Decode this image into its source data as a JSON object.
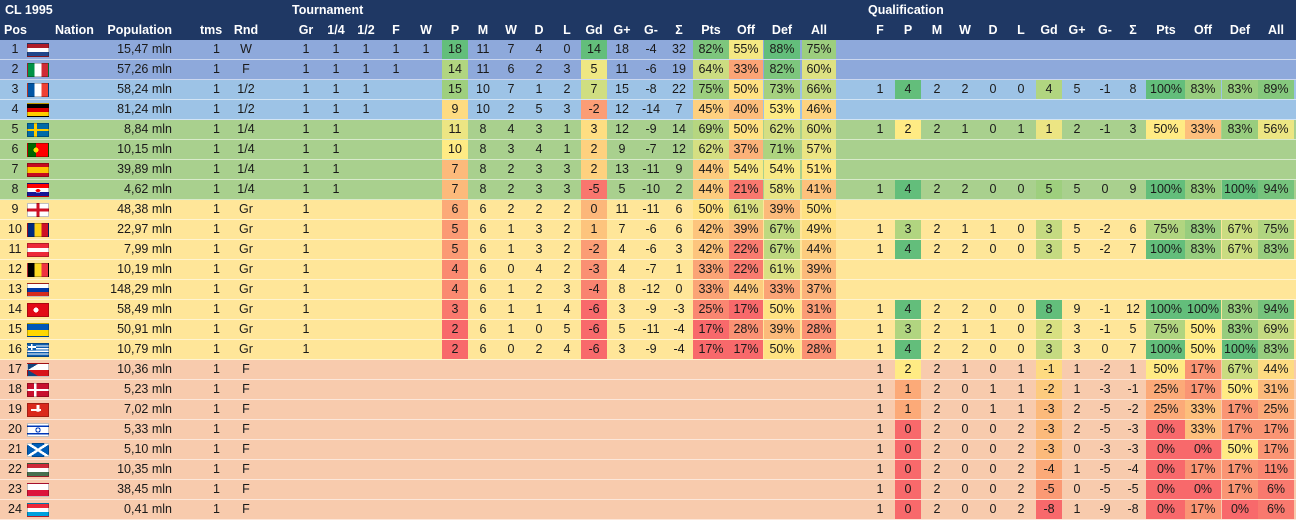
{
  "header": {
    "title": "CL 1995",
    "tournament_label": "Tournament",
    "qualification_label": "Qualification",
    "cols": {
      "pos": "Pos",
      "nation": "Nation",
      "population": "Population",
      "tms": "tms",
      "rnd": "Rnd",
      "gr": "Gr",
      "q": "1/4",
      "s": "1/2",
      "f": "F",
      "w": "W",
      "p": "P",
      "m": "M",
      "wins": "W",
      "d": "D",
      "l": "L",
      "gd": "Gd",
      "gplus": "G+",
      "gminus": "G-",
      "sum": "Σ",
      "pts": "Pts",
      "off": "Off",
      "def": "Def",
      "all": "All",
      "qf": "F",
      "qp": "P",
      "qm": "M",
      "qw": "W",
      "qd": "D",
      "ql": "L",
      "qgd": "Gd",
      "qgplus": "G+",
      "qgminus": "G-",
      "qsum": "Σ",
      "qpts": "Pts",
      "qoff": "Off",
      "qdef": "Def",
      "qall": "All"
    }
  },
  "colors": {
    "header": "#1f3864",
    "row_winner": "#8ea9db",
    "row_semi": "#9dc3e6",
    "row_quarter": "#a9d08e",
    "row_group": "#ffe699",
    "row_qual_out": "#f8cbad"
  },
  "rows": [
    {
      "pos": "1",
      "code": "NLD",
      "flag": "nld",
      "pop": "15,47 mln",
      "tms": "1",
      "rnd": "W",
      "gr": "1",
      "q": "1",
      "s": "1",
      "f": "1",
      "w": "1",
      "p": "18",
      "m": "11",
      "win": "7",
      "d": "4",
      "l": "0",
      "gd": "14",
      "gp": "18",
      "gm": "-4",
      "sum": "32",
      "pts": "82%",
      "off": "55%",
      "def": "88%",
      "all": "75%",
      "band": "winner",
      "qual": null
    },
    {
      "pos": "2",
      "code": "ITA",
      "flag": "ita",
      "pop": "57,26 mln",
      "tms": "1",
      "rnd": "F",
      "gr": "1",
      "q": "1",
      "s": "1",
      "f": "1",
      "w": "",
      "p": "14",
      "m": "11",
      "win": "6",
      "d": "2",
      "l": "3",
      "gd": "5",
      "gp": "11",
      "gm": "-6",
      "sum": "19",
      "pts": "64%",
      "off": "33%",
      "def": "82%",
      "all": "60%",
      "band": "winner",
      "qual": null
    },
    {
      "pos": "3",
      "code": "FRA",
      "flag": "fra",
      "pop": "58,24 mln",
      "tms": "1",
      "rnd": "1/2",
      "gr": "1",
      "q": "1",
      "s": "1",
      "f": "",
      "w": "",
      "p": "15",
      "m": "10",
      "win": "7",
      "d": "1",
      "l": "2",
      "gd": "7",
      "gp": "15",
      "gm": "-8",
      "sum": "22",
      "pts": "75%",
      "off": "50%",
      "def": "73%",
      "all": "66%",
      "band": "semi",
      "qual": {
        "f": "1",
        "p": "4",
        "m": "2",
        "w": "2",
        "d": "0",
        "l": "0",
        "gd": "4",
        "gp": "5",
        "gm": "-1",
        "sum": "8",
        "pts": "100%",
        "off": "83%",
        "def": "83%",
        "all": "89%"
      }
    },
    {
      "pos": "4",
      "code": "DEU",
      "flag": "deu",
      "pop": "81,24 mln",
      "tms": "1",
      "rnd": "1/2",
      "gr": "1",
      "q": "1",
      "s": "1",
      "f": "",
      "w": "",
      "p": "9",
      "m": "10",
      "win": "2",
      "d": "5",
      "l": "3",
      "gd": "-2",
      "gp": "12",
      "gm": "-14",
      "sum": "7",
      "pts": "45%",
      "off": "40%",
      "def": "53%",
      "all": "46%",
      "band": "semi",
      "qual": null
    },
    {
      "pos": "5",
      "code": "SWE",
      "flag": "swe",
      "pop": "8,84 mln",
      "tms": "1",
      "rnd": "1/4",
      "gr": "1",
      "q": "1",
      "s": "",
      "f": "",
      "w": "",
      "p": "11",
      "m": "8",
      "win": "4",
      "d": "3",
      "l": "1",
      "gd": "3",
      "gp": "12",
      "gm": "-9",
      "sum": "14",
      "pts": "69%",
      "off": "50%",
      "def": "62%",
      "all": "60%",
      "band": "quarter",
      "qual": {
        "f": "1",
        "p": "2",
        "m": "2",
        "w": "1",
        "d": "0",
        "l": "1",
        "gd": "1",
        "gp": "2",
        "gm": "-1",
        "sum": "3",
        "pts": "50%",
        "off": "33%",
        "def": "83%",
        "all": "56%"
      }
    },
    {
      "pos": "6",
      "code": "PRT",
      "flag": "prt",
      "pop": "10,15 mln",
      "tms": "1",
      "rnd": "1/4",
      "gr": "1",
      "q": "1",
      "s": "",
      "f": "",
      "w": "",
      "p": "10",
      "m": "8",
      "win": "3",
      "d": "4",
      "l": "1",
      "gd": "2",
      "gp": "9",
      "gm": "-7",
      "sum": "12",
      "pts": "62%",
      "off": "37%",
      "def": "71%",
      "all": "57%",
      "band": "quarter",
      "qual": null
    },
    {
      "pos": "7",
      "code": "ESP",
      "flag": "esp",
      "pop": "39,89 mln",
      "tms": "1",
      "rnd": "1/4",
      "gr": "1",
      "q": "1",
      "s": "",
      "f": "",
      "w": "",
      "p": "7",
      "m": "8",
      "win": "2",
      "d": "3",
      "l": "3",
      "gd": "2",
      "gp": "13",
      "gm": "-11",
      "sum": "9",
      "pts": "44%",
      "off": "54%",
      "def": "54%",
      "all": "51%",
      "band": "quarter",
      "qual": null
    },
    {
      "pos": "8",
      "code": "HRV",
      "flag": "hrv",
      "pop": "4,62 mln",
      "tms": "1",
      "rnd": "1/4",
      "gr": "1",
      "q": "1",
      "s": "",
      "f": "",
      "w": "",
      "p": "7",
      "m": "8",
      "win": "2",
      "d": "3",
      "l": "3",
      "gd": "-5",
      "gp": "5",
      "gm": "-10",
      "sum": "2",
      "pts": "44%",
      "off": "21%",
      "def": "58%",
      "all": "41%",
      "band": "quarter",
      "qual": {
        "f": "1",
        "p": "4",
        "m": "2",
        "w": "2",
        "d": "0",
        "l": "0",
        "gd": "5",
        "gp": "5",
        "gm": "0",
        "sum": "9",
        "pts": "100%",
        "off": "83%",
        "def": "100%",
        "all": "94%"
      }
    },
    {
      "pos": "9",
      "code": "ENG",
      "flag": "eng",
      "pop": "48,38 mln",
      "tms": "1",
      "rnd": "Gr",
      "gr": "1",
      "q": "",
      "s": "",
      "f": "",
      "w": "",
      "p": "6",
      "m": "6",
      "win": "2",
      "d": "2",
      "l": "2",
      "gd": "0",
      "gp": "11",
      "gm": "-11",
      "sum": "6",
      "pts": "50%",
      "off": "61%",
      "def": "39%",
      "all": "50%",
      "band": "group",
      "qual": null
    },
    {
      "pos": "10",
      "code": "ROU",
      "flag": "rou",
      "pop": "22,97 mln",
      "tms": "1",
      "rnd": "Gr",
      "gr": "1",
      "q": "",
      "s": "",
      "f": "",
      "w": "",
      "p": "5",
      "m": "6",
      "win": "1",
      "d": "3",
      "l": "2",
      "gd": "1",
      "gp": "7",
      "gm": "-6",
      "sum": "6",
      "pts": "42%",
      "off": "39%",
      "def": "67%",
      "all": "49%",
      "band": "group",
      "qual": {
        "f": "1",
        "p": "3",
        "m": "2",
        "w": "1",
        "d": "1",
        "l": "0",
        "gd": "3",
        "gp": "5",
        "gm": "-2",
        "sum": "6",
        "pts": "75%",
        "off": "83%",
        "def": "67%",
        "all": "75%"
      }
    },
    {
      "pos": "11",
      "code": "AUT",
      "flag": "aut",
      "pop": "7,99 mln",
      "tms": "1",
      "rnd": "Gr",
      "gr": "1",
      "q": "",
      "s": "",
      "f": "",
      "w": "",
      "p": "5",
      "m": "6",
      "win": "1",
      "d": "3",
      "l": "2",
      "gd": "-2",
      "gp": "4",
      "gm": "-6",
      "sum": "3",
      "pts": "42%",
      "off": "22%",
      "def": "67%",
      "all": "44%",
      "band": "group",
      "qual": {
        "f": "1",
        "p": "4",
        "m": "2",
        "w": "2",
        "d": "0",
        "l": "0",
        "gd": "3",
        "gp": "5",
        "gm": "-2",
        "sum": "7",
        "pts": "100%",
        "off": "83%",
        "def": "67%",
        "all": "83%"
      }
    },
    {
      "pos": "12",
      "code": "BEL",
      "flag": "bel",
      "pop": "10,19 mln",
      "tms": "1",
      "rnd": "Gr",
      "gr": "1",
      "q": "",
      "s": "",
      "f": "",
      "w": "",
      "p": "4",
      "m": "6",
      "win": "0",
      "d": "4",
      "l": "2",
      "gd": "-3",
      "gp": "4",
      "gm": "-7",
      "sum": "1",
      "pts": "33%",
      "off": "22%",
      "def": "61%",
      "all": "39%",
      "band": "group",
      "qual": null
    },
    {
      "pos": "13",
      "code": "RUS",
      "flag": "rus",
      "pop": "148,29 mln",
      "tms": "1",
      "rnd": "Gr",
      "gr": "1",
      "q": "",
      "s": "",
      "f": "",
      "w": "",
      "p": "4",
      "m": "6",
      "win": "1",
      "d": "2",
      "l": "3",
      "gd": "-4",
      "gp": "8",
      "gm": "-12",
      "sum": "0",
      "pts": "33%",
      "off": "44%",
      "def": "33%",
      "all": "37%",
      "band": "group",
      "qual": null
    },
    {
      "pos": "14",
      "code": "TUR",
      "flag": "tur",
      "pop": "58,49 mln",
      "tms": "1",
      "rnd": "Gr",
      "gr": "1",
      "q": "",
      "s": "",
      "f": "",
      "w": "",
      "p": "3",
      "m": "6",
      "win": "1",
      "d": "1",
      "l": "4",
      "gd": "-6",
      "gp": "3",
      "gm": "-9",
      "sum": "-3",
      "pts": "25%",
      "off": "17%",
      "def": "50%",
      "all": "31%",
      "band": "group",
      "qual": {
        "f": "1",
        "p": "4",
        "m": "2",
        "w": "2",
        "d": "0",
        "l": "0",
        "gd": "8",
        "gp": "9",
        "gm": "-1",
        "sum": "12",
        "pts": "100%",
        "off": "100%",
        "def": "83%",
        "all": "94%"
      }
    },
    {
      "pos": "15",
      "code": "UKR",
      "flag": "ukr",
      "pop": "50,91 mln",
      "tms": "1",
      "rnd": "Gr",
      "gr": "1",
      "q": "",
      "s": "",
      "f": "",
      "w": "",
      "p": "2",
      "m": "6",
      "win": "1",
      "d": "0",
      "l": "5",
      "gd": "-6",
      "gp": "5",
      "gm": "-11",
      "sum": "-4",
      "pts": "17%",
      "off": "28%",
      "def": "39%",
      "all": "28%",
      "band": "group",
      "qual": {
        "f": "1",
        "p": "3",
        "m": "2",
        "w": "1",
        "d": "1",
        "l": "0",
        "gd": "2",
        "gp": "3",
        "gm": "-1",
        "sum": "5",
        "pts": "75%",
        "off": "50%",
        "def": "83%",
        "all": "69%"
      }
    },
    {
      "pos": "16",
      "code": "GRC",
      "flag": "grc",
      "pop": "10,79 mln",
      "tms": "1",
      "rnd": "Gr",
      "gr": "1",
      "q": "",
      "s": "",
      "f": "",
      "w": "",
      "p": "2",
      "m": "6",
      "win": "0",
      "d": "2",
      "l": "4",
      "gd": "-6",
      "gp": "3",
      "gm": "-9",
      "sum": "-4",
      "pts": "17%",
      "off": "17%",
      "def": "50%",
      "all": "28%",
      "band": "group",
      "qual": {
        "f": "1",
        "p": "4",
        "m": "2",
        "w": "2",
        "d": "0",
        "l": "0",
        "gd": "3",
        "gp": "3",
        "gm": "0",
        "sum": "7",
        "pts": "100%",
        "off": "50%",
        "def": "100%",
        "all": "83%"
      }
    },
    {
      "pos": "17",
      "code": "CZE",
      "flag": "cze",
      "pop": "10,36 mln",
      "tms": "1",
      "rnd": "F",
      "band": "qual",
      "qual": {
        "f": "1",
        "p": "2",
        "m": "2",
        "w": "1",
        "d": "0",
        "l": "1",
        "gd": "-1",
        "gp": "1",
        "gm": "-2",
        "sum": "1",
        "pts": "50%",
        "off": "17%",
        "def": "67%",
        "all": "44%"
      }
    },
    {
      "pos": "18",
      "code": "DNK",
      "flag": "dnk",
      "pop": "5,23 mln",
      "tms": "1",
      "rnd": "F",
      "band": "qual",
      "qual": {
        "f": "1",
        "p": "1",
        "m": "2",
        "w": "0",
        "d": "1",
        "l": "1",
        "gd": "-2",
        "gp": "1",
        "gm": "-3",
        "sum": "-1",
        "pts": "25%",
        "off": "17%",
        "def": "50%",
        "all": "31%"
      }
    },
    {
      "pos": "19",
      "code": "CHE",
      "flag": "che",
      "pop": "7,02 mln",
      "tms": "1",
      "rnd": "F",
      "band": "qual",
      "qual": {
        "f": "1",
        "p": "1",
        "m": "2",
        "w": "0",
        "d": "1",
        "l": "1",
        "gd": "-3",
        "gp": "2",
        "gm": "-5",
        "sum": "-2",
        "pts": "25%",
        "off": "33%",
        "def": "17%",
        "all": "25%"
      }
    },
    {
      "pos": "20",
      "code": "ISR",
      "flag": "isr",
      "pop": "5,33 mln",
      "tms": "1",
      "rnd": "F",
      "band": "qual",
      "qual": {
        "f": "1",
        "p": "0",
        "m": "2",
        "w": "0",
        "d": "0",
        "l": "2",
        "gd": "-3",
        "gp": "2",
        "gm": "-5",
        "sum": "-3",
        "pts": "0%",
        "off": "33%",
        "def": "17%",
        "all": "17%"
      }
    },
    {
      "pos": "21",
      "code": "SCO",
      "flag": "sco",
      "pop": "5,10 mln",
      "tms": "1",
      "rnd": "F",
      "band": "qual",
      "qual": {
        "f": "1",
        "p": "0",
        "m": "2",
        "w": "0",
        "d": "0",
        "l": "2",
        "gd": "-3",
        "gp": "0",
        "gm": "-3",
        "sum": "-3",
        "pts": "0%",
        "off": "0%",
        "def": "50%",
        "all": "17%"
      }
    },
    {
      "pos": "22",
      "code": "HUN",
      "flag": "hun",
      "pop": "10,35 mln",
      "tms": "1",
      "rnd": "F",
      "band": "qual",
      "qual": {
        "f": "1",
        "p": "0",
        "m": "2",
        "w": "0",
        "d": "0",
        "l": "2",
        "gd": "-4",
        "gp": "1",
        "gm": "-5",
        "sum": "-4",
        "pts": "0%",
        "off": "17%",
        "def": "17%",
        "all": "11%"
      }
    },
    {
      "pos": "23",
      "code": "POL",
      "flag": "pol",
      "pop": "38,45 mln",
      "tms": "1",
      "rnd": "F",
      "band": "qual",
      "qual": {
        "f": "1",
        "p": "0",
        "m": "2",
        "w": "0",
        "d": "0",
        "l": "2",
        "gd": "-5",
        "gp": "0",
        "gm": "-5",
        "sum": "-5",
        "pts": "0%",
        "off": "0%",
        "def": "17%",
        "all": "6%"
      }
    },
    {
      "pos": "24",
      "code": "LUX",
      "flag": "lux",
      "pop": "0,41 mln",
      "tms": "1",
      "rnd": "F",
      "band": "qual",
      "qual": {
        "f": "1",
        "p": "0",
        "m": "2",
        "w": "0",
        "d": "0",
        "l": "2",
        "gd": "-8",
        "gp": "1",
        "gm": "-9",
        "sum": "-8",
        "pts": "0%",
        "off": "17%",
        "def": "0%",
        "all": "6%"
      }
    }
  ]
}
